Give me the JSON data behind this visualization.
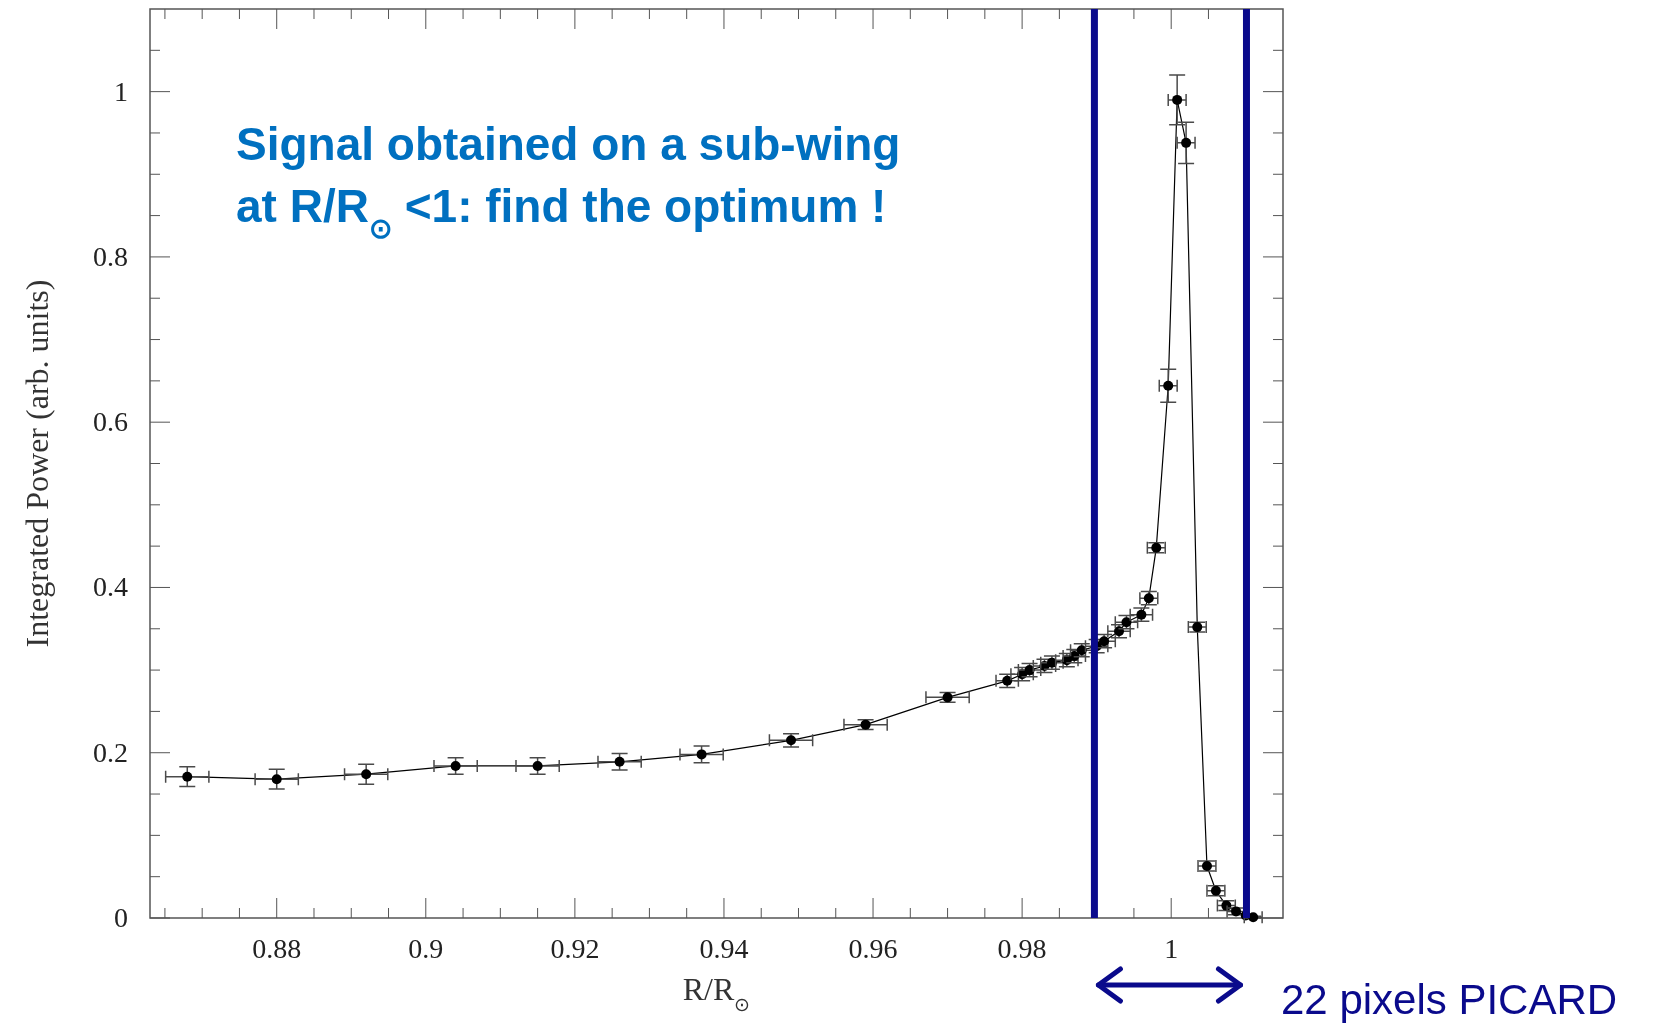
{
  "chart_data": {
    "type": "line",
    "xlabel": "R/R$_{⊙}$",
    "ylabel": "Integrated Power (arb. units)",
    "xlim": [
      0.863,
      1.015
    ],
    "ylim": [
      0,
      1.1
    ],
    "xticks": [
      {
        "value": 0.865,
        "label": null
      },
      {
        "value": 0.87,
        "label": null
      },
      {
        "value": 0.875,
        "label": null
      },
      0.88,
      {
        "value": 0.885,
        "label": null
      },
      {
        "value": 0.89,
        "label": null
      },
      {
        "value": 0.895,
        "label": null
      },
      0.9,
      {
        "value": 0.905,
        "label": null
      },
      {
        "value": 0.91,
        "label": null
      },
      {
        "value": 0.915,
        "label": null
      },
      0.92,
      {
        "value": 0.925,
        "label": null
      },
      {
        "value": 0.93,
        "label": null
      },
      {
        "value": 0.935,
        "label": null
      },
      0.94,
      {
        "value": 0.945,
        "label": null
      },
      {
        "value": 0.95,
        "label": null
      },
      {
        "value": 0.955,
        "label": null
      },
      0.96,
      {
        "value": 0.965,
        "label": null
      },
      {
        "value": 0.97,
        "label": null
      },
      {
        "value": 0.975,
        "label": null
      },
      0.98,
      {
        "value": 0.985,
        "label": null
      },
      {
        "value": 0.99,
        "label": null
      },
      {
        "value": 0.995,
        "label": null
      },
      1,
      {
        "value": 1.005,
        "label": null
      },
      {
        "value": 1.01,
        "label": null
      }
    ],
    "yticks": [
      0,
      {
        "value": 0.05,
        "label": null
      },
      {
        "value": 0.1,
        "label": null
      },
      {
        "value": 0.15,
        "label": null
      },
      0.2,
      {
        "value": 0.25,
        "label": null
      },
      {
        "value": 0.3,
        "label": null
      },
      {
        "value": 0.35,
        "label": null
      },
      0.4,
      {
        "value": 0.45,
        "label": null
      },
      {
        "value": 0.5,
        "label": null
      },
      {
        "value": 0.55,
        "label": null
      },
      0.6,
      {
        "value": 0.65,
        "label": null
      },
      {
        "value": 0.7,
        "label": null
      },
      {
        "value": 0.75,
        "label": null
      },
      0.8,
      {
        "value": 0.85,
        "label": null
      },
      {
        "value": 0.9,
        "label": null
      },
      {
        "value": 0.95,
        "label": null
      },
      1,
      {
        "value": 1.05,
        "label": null
      }
    ],
    "grid": false,
    "marker": "circle",
    "line_style": "solid",
    "series": [
      {
        "color": "#000000",
        "x": [
          0.868,
          0.88,
          0.892,
          0.904,
          0.915,
          0.926,
          0.937,
          0.949,
          0.959,
          0.97,
          0.978,
          0.98,
          0.981,
          0.983,
          0.984,
          0.986,
          0.987,
          0.988,
          0.99,
          0.991,
          0.993,
          0.994,
          0.996,
          0.997,
          0.998,
          0.9996,
          1.0008,
          1.002,
          1.0035,
          1.0048,
          1.006,
          1.0074,
          1.0087,
          1.01,
          1.011
        ],
        "values": [
          0.171,
          0.168,
          0.174,
          0.184,
          0.184,
          0.189,
          0.198,
          0.215,
          0.234,
          0.267,
          0.287,
          0.295,
          0.3,
          0.305,
          0.309,
          0.312,
          0.317,
          0.324,
          0.329,
          0.335,
          0.347,
          0.358,
          0.367,
          0.387,
          0.448,
          0.644,
          0.99,
          0.938,
          0.352,
          0.063,
          0.033,
          0.015,
          0.008,
          0.003,
          0.001
        ],
        "errors": [
          0.012,
          0.012,
          0.012,
          0.01,
          0.01,
          0.01,
          0.01,
          0.008,
          0.006,
          0.006,
          0.008,
          0.008,
          0.008,
          0.008,
          0.008,
          0.008,
          0.008,
          0.008,
          0.008,
          0.008,
          0.008,
          0.008,
          0.008,
          0.008,
          0.006,
          0.02,
          0.03,
          0.025,
          0.006,
          0.006,
          0.006,
          0.006,
          0.004,
          null,
          0.001
        ],
        "xerrors": [
          0.0029,
          0.0029,
          0.0029,
          0.0029,
          0.0029,
          0.0029,
          0.0029,
          0.0029,
          0.0029,
          0.0029,
          0.0015,
          0.0015,
          0.0015,
          0.0015,
          0.0015,
          0.0015,
          0.0015,
          0.0015,
          0.0015,
          0.0015,
          0.0015,
          0.0015,
          0.0015,
          0.0012,
          0.0012,
          0.0012,
          0.0012,
          0.0012,
          0.0012,
          0.0012,
          0.0012,
          0.0012,
          0.0012,
          null,
          0.0012
        ]
      }
    ],
    "ref_lines": [
      {
        "axis": "x",
        "value": 0.9897,
        "color": "#0a0a8c",
        "line_style": "solid"
      },
      {
        "axis": "x",
        "value": 1.0101,
        "color": "#0a0a8c",
        "line_style": "solid"
      }
    ],
    "annotations": [
      "Signal obtained on a sub-wing at R/R$_{⊙}$ <1: find the optimum !",
      "22 pixels PICARD"
    ]
  }
}
